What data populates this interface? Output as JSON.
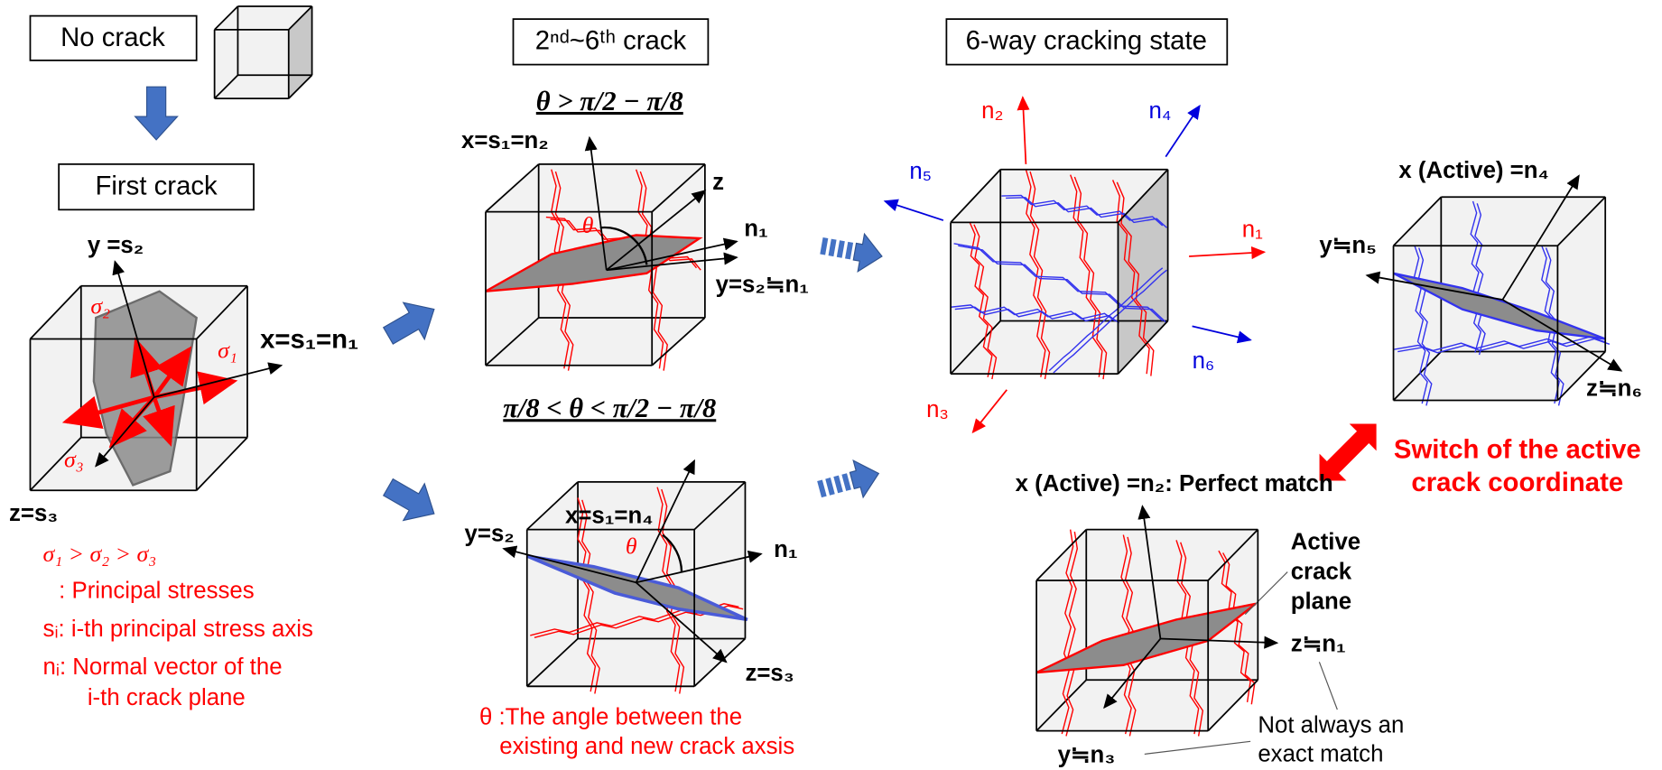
{
  "panel1": {
    "no_crack": "No crack",
    "first_crack": "First crack",
    "axis_y": "y =s₂",
    "axis_x": "x=s₁=n₁",
    "axis_z": "z=s₃",
    "sigma1": "σ₁",
    "sigma2": "σ₂",
    "sigma3": "σ₃",
    "legend": [
      "σ₁ > σ₂ > σ₃",
      ": Principal stresses",
      "sᵢ: i-th principal stress axis",
      "nᵢ: Normal vector of the",
      "i-th crack plane"
    ]
  },
  "panel2": {
    "title": "2ⁿᵈ~6ᵗʰ crack",
    "case_a": {
      "condition": "θ > π/2 − π/8",
      "x": "x=s₁=n₂",
      "z": "z",
      "n1": "n₁",
      "y": "y=s₂≒n₁",
      "theta": "θ"
    },
    "case_b": {
      "condition": "π/8 < θ < π/2 − π/8",
      "x": "x=s₁=n₄",
      "y": "y=s₂",
      "n1": "n₁",
      "z": "z=s₃",
      "theta": "θ"
    },
    "note": [
      "θ :The angle between the",
      "existing and new crack axsis"
    ]
  },
  "panel3": {
    "title": "6-way cracking state",
    "normals": [
      "n₁",
      "n₂",
      "n₃",
      "n₄",
      "n₅",
      "n₆"
    ]
  },
  "panel4": {
    "x": "x (Active) =n₄",
    "y": "y≒n₅",
    "z": "z≒n₆",
    "switch": [
      "Switch of the active",
      "crack coordinate"
    ],
    "perfect": "x (Active) =n₂: Perfect match",
    "active": [
      "Active",
      "crack",
      "plane"
    ],
    "z2": "z≒n₁",
    "y2": "y≒n₃",
    "not_exact": [
      "Not always an",
      "exact match"
    ]
  }
}
